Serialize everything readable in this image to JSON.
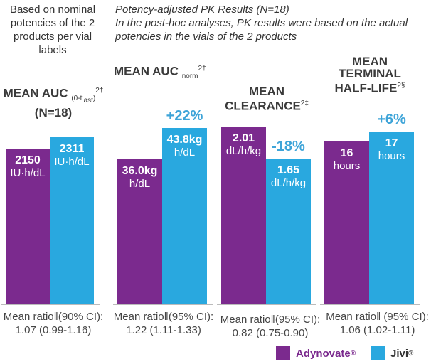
{
  "left_note": "Based on nominal potencies of the 2 products per vial labels",
  "header": {
    "line1": "Potency-adjusted PK Results (N=18)",
    "line2": "In the post-hoc analyses, PK results were based on the actual potencies in the vials of the 2 products"
  },
  "colors": {
    "adynovate": "#7b2a8e",
    "jivi": "#29a8df",
    "change": "#3ea4d8"
  },
  "chart_data": [
    {
      "type": "bar",
      "title": "MEAN AUC",
      "title_sub": "(0-t",
      "title_sub2": "last",
      "title_sub3": ")",
      "title_sup": "2†",
      "title_line2": "(N=18)",
      "series": [
        {
          "name": "Adynovate®",
          "value": 2150,
          "label": "2150",
          "unit": "IU·h/dL"
        },
        {
          "name": "Jivi®",
          "value": 2311,
          "label": "2311",
          "unit": "IU·h/dL"
        }
      ],
      "change": "",
      "ratio_line1": "Mean ratio‖(90% CI):",
      "ratio_line2": "1.07 (0.99-1.16)"
    },
    {
      "type": "bar",
      "title": "MEAN AUC",
      "title_sub": "norm",
      "title_sup": "2†",
      "series": [
        {
          "name": "Adynovate®",
          "value": 36.0,
          "label": "36.0kg",
          "unit": "h/dL"
        },
        {
          "name": "Jivi®",
          "value": 43.8,
          "label": "43.8kg",
          "unit": "h/dL"
        }
      ],
      "change": "+22%",
      "ratio_line1": "Mean ratio‖(95% CI):",
      "ratio_line2": "1.22 (1.11-1.33)"
    },
    {
      "type": "bar",
      "title": "MEAN",
      "title_line2": "CLEARANCE",
      "title_sup": "2‡",
      "series": [
        {
          "name": "Adynovate®",
          "value": 2.01,
          "label": "2.01",
          "unit": "dL/h/kg"
        },
        {
          "name": "Jivi®",
          "value": 1.65,
          "label": "1.65",
          "unit": "dL/h/kg"
        }
      ],
      "change": "-18%",
      "ratio_line1": "Mean ratio‖(95% CI):",
      "ratio_line2": "0.82 (0.75-0.90)"
    },
    {
      "type": "bar",
      "title": "MEAN",
      "title_line2": "TERMINAL",
      "title_line3": "HALF-LIFE",
      "title_sup": "2§",
      "series": [
        {
          "name": "Adynovate®",
          "value": 16,
          "label": "16",
          "unit": "hours"
        },
        {
          "name": "Jivi®",
          "value": 17,
          "label": "17",
          "unit": "hours"
        }
      ],
      "change": "+6%",
      "ratio_line1": "Mean ratio‖ (95% CI):",
      "ratio_line2": "1.06 (1.02-1.11)"
    }
  ],
  "legend": [
    {
      "name": "Adynovate",
      "mark": "®"
    },
    {
      "name": "Jivi",
      "mark": "®"
    }
  ]
}
